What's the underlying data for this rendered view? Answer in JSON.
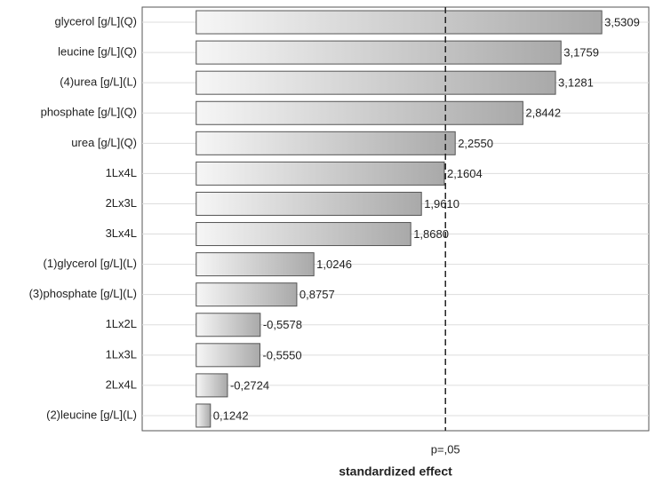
{
  "chart_data": {
    "type": "pareto",
    "categories": [
      "glycerol [g/L](Q)",
      "leucine [g/L](Q)",
      "(4)urea [g/L](L)",
      "phosphate [g/L](Q)",
      "urea [g/L](Q)",
      "1Lx4L",
      "2Lx3L",
      "3Lx4L",
      "(1)glycerol [g/L](L)",
      "(3)phosphate [g/L](L)",
      "1Lx2L",
      "1Lx3L",
      "2Lx4L",
      "(2)leucine [g/L](L)"
    ],
    "values": [
      3.5309,
      3.1759,
      3.1281,
      2.8442,
      2.255,
      2.1604,
      1.961,
      1.868,
      1.0246,
      0.8757,
      -0.5578,
      -0.555,
      -0.2724,
      0.1242
    ],
    "value_labels": [
      "3,5309",
      "3,1759",
      "3,1281",
      "2,8442",
      "2,2550",
      "2,1604",
      "1,9610",
      "1,8680",
      "1,0246",
      "0,8757",
      "-0,5578",
      "-0,5550",
      "-0,2724",
      "0,1242"
    ],
    "xlim": [
      -0.47,
      3.94
    ],
    "reference_line": {
      "value": 2.17,
      "label": "p=,05"
    },
    "x_label": "standardized effect",
    "grid": true
  }
}
